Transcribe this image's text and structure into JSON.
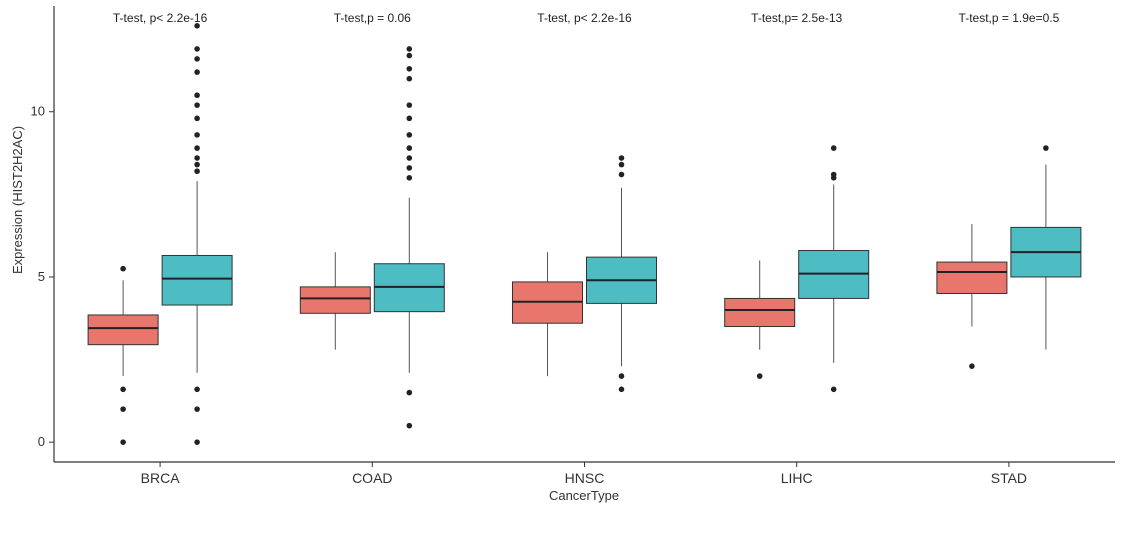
{
  "chart_data": {
    "type": "box",
    "xlabel": "CancerType",
    "ylabel": "Expression (HIST2H2AC)",
    "ylim": [
      -0.6,
      13.2
    ],
    "yticks": [
      0,
      5,
      10
    ],
    "grid": false,
    "legend": "none",
    "colors": {
      "group1": "#E8766C",
      "group2": "#4DBDC3"
    },
    "categories": [
      "BRCA",
      "COAD",
      "HNSC",
      "LIHC",
      "STAD"
    ],
    "annotations": [
      "T-test, p< 2.2e-16",
      "T-test,p = 0.06",
      "T-test, p< 2.2e-16",
      "T-test,p= 2.5e-13",
      "T-test,p = 1.9e=0.5"
    ],
    "groups": [
      {
        "category": "BRCA",
        "boxes": [
          {
            "color": "group1",
            "whisker_low": 2.0,
            "q1": 2.95,
            "median": 3.45,
            "q3": 3.85,
            "whisker_high": 4.9,
            "outliers": [
              5.25,
              1.6,
              1.0,
              0.0
            ]
          },
          {
            "color": "group2",
            "whisker_low": 2.1,
            "q1": 4.15,
            "median": 4.95,
            "q3": 5.65,
            "whisker_high": 7.9,
            "outliers": [
              8.2,
              8.4,
              8.6,
              8.9,
              9.3,
              9.8,
              10.2,
              10.5,
              11.2,
              11.6,
              11.9,
              12.6,
              1.6,
              1.0,
              0.0
            ]
          }
        ]
      },
      {
        "category": "COAD",
        "boxes": [
          {
            "color": "group1",
            "whisker_low": 2.8,
            "q1": 3.9,
            "median": 4.35,
            "q3": 4.7,
            "whisker_high": 5.75,
            "outliers": []
          },
          {
            "color": "group2",
            "whisker_low": 2.1,
            "q1": 3.95,
            "median": 4.7,
            "q3": 5.4,
            "whisker_high": 7.4,
            "outliers": [
              8.0,
              8.3,
              8.6,
              8.9,
              9.3,
              9.8,
              10.2,
              11.0,
              11.3,
              11.7,
              11.9,
              1.5,
              0.5
            ]
          }
        ]
      },
      {
        "category": "HNSC",
        "boxes": [
          {
            "color": "group1",
            "whisker_low": 2.0,
            "q1": 3.6,
            "median": 4.25,
            "q3": 4.85,
            "whisker_high": 5.75,
            "outliers": []
          },
          {
            "color": "group2",
            "whisker_low": 2.3,
            "q1": 4.2,
            "median": 4.9,
            "q3": 5.6,
            "whisker_high": 7.7,
            "outliers": [
              8.1,
              8.4,
              8.6,
              2.0,
              1.6
            ]
          }
        ]
      },
      {
        "category": "LIHC",
        "boxes": [
          {
            "color": "group1",
            "whisker_low": 2.8,
            "q1": 3.5,
            "median": 4.0,
            "q3": 4.35,
            "whisker_high": 5.5,
            "outliers": [
              2.0
            ]
          },
          {
            "color": "group2",
            "whisker_low": 2.4,
            "q1": 4.35,
            "median": 5.1,
            "q3": 5.8,
            "whisker_high": 7.8,
            "outliers": [
              8.0,
              8.1,
              8.9,
              1.6
            ]
          }
        ]
      },
      {
        "category": "STAD",
        "boxes": [
          {
            "color": "group1",
            "whisker_low": 3.5,
            "q1": 4.5,
            "median": 5.15,
            "q3": 5.45,
            "whisker_high": 6.6,
            "outliers": [
              2.3
            ]
          },
          {
            "color": "group2",
            "whisker_low": 2.8,
            "q1": 5.0,
            "median": 5.75,
            "q3": 6.5,
            "whisker_high": 8.4,
            "outliers": [
              8.9
            ]
          }
        ]
      }
    ]
  }
}
